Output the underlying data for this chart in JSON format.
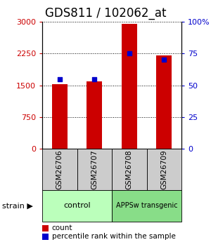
{
  "title": "GDS811 / 102062_at",
  "categories": [
    "GSM26706",
    "GSM26707",
    "GSM26708",
    "GSM26709"
  ],
  "counts": [
    1520,
    1600,
    2950,
    2200
  ],
  "percentiles": [
    55,
    55,
    75,
    70
  ],
  "bar_color": "#cc0000",
  "marker_color": "#0000cc",
  "left_ylim": [
    0,
    3000
  ],
  "right_ylim": [
    0,
    100
  ],
  "left_yticks": [
    0,
    750,
    1500,
    2250,
    3000
  ],
  "right_yticks": [
    0,
    25,
    50,
    75,
    100
  ],
  "left_yticklabels": [
    "0",
    "750",
    "1500",
    "2250",
    "3000"
  ],
  "right_yticklabels": [
    "0",
    "25",
    "50",
    "75",
    "100%"
  ],
  "group_labels": [
    "control",
    "APPSw transgenic"
  ],
  "group_colors": [
    "#bbffbb",
    "#88dd88"
  ],
  "group_ranges": [
    [
      0,
      2
    ],
    [
      2,
      4
    ]
  ],
  "strain_label": "strain",
  "legend_items": [
    "count",
    "percentile rank within the sample"
  ],
  "legend_colors": [
    "#cc0000",
    "#0000cc"
  ],
  "bar_width": 0.45,
  "title_fontsize": 12,
  "tick_fontsize": 8,
  "label_fontsize": 8,
  "gsm_box_color": "#cccccc",
  "bg_color": "#ffffff"
}
